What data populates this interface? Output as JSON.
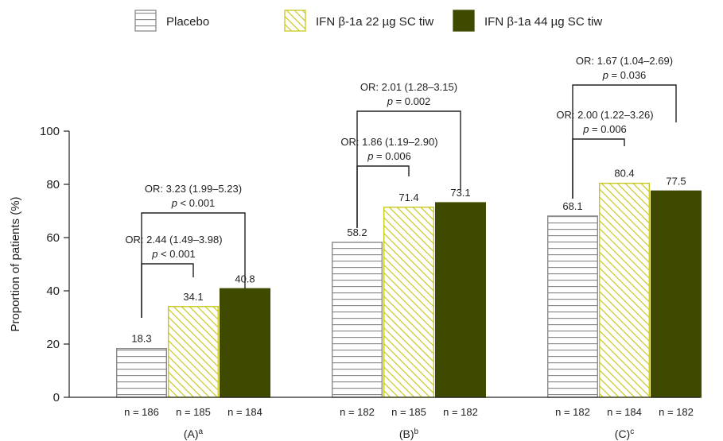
{
  "chart_data": {
    "type": "bar",
    "ylabel": "Proportion of patients (%)",
    "ylim": [
      0,
      100
    ],
    "yticks": [
      0,
      20,
      40,
      60,
      80,
      100
    ],
    "legend_position": "top",
    "series": [
      {
        "name": "Placebo",
        "pattern": "horizontal-lines",
        "color": "#8a8a8a"
      },
      {
        "name": "IFN β-1a 22 µg SC tiw",
        "pattern": "diagonal-hatch",
        "color": "#c8c81e"
      },
      {
        "name": "IFN β-1a 44 µg SC tiw",
        "pattern": "solid",
        "color": "#3f4a00"
      }
    ],
    "groups": [
      {
        "label": "(A)",
        "sup": "a",
        "values": [
          18.3,
          34.1,
          40.8
        ],
        "value_labels": [
          "18.3",
          "34.1",
          "40.8"
        ],
        "n_labels": [
          "n = 186",
          "n = 185",
          "n = 184"
        ],
        "comparisons": [
          {
            "from": 0,
            "to": 1,
            "or": "OR: 2.44 (1.49–3.98)",
            "p_op": "<",
            "p_val": "0.001"
          },
          {
            "from": 0,
            "to": 2,
            "or": "OR: 3.23 (1.99–5.23)",
            "p_op": "<",
            "p_val": "0.001"
          }
        ]
      },
      {
        "label": "(B)",
        "sup": "b",
        "values": [
          58.2,
          71.4,
          73.1
        ],
        "value_labels": [
          "58.2",
          "71.4",
          "73.1"
        ],
        "n_labels": [
          "n = 182",
          "n = 185",
          "n = 182"
        ],
        "comparisons": [
          {
            "from": 0,
            "to": 1,
            "or": "OR: 1.86 (1.19–2.90)",
            "p_op": "=",
            "p_val": "0.006"
          },
          {
            "from": 0,
            "to": 2,
            "or": "OR: 2.01 (1.28–3.15)",
            "p_op": "=",
            "p_val": "0.002"
          }
        ]
      },
      {
        "label": "(C)",
        "sup": "c",
        "values": [
          68.1,
          80.4,
          77.5
        ],
        "value_labels": [
          "68.1",
          "80.4",
          "77.5"
        ],
        "n_labels": [
          "n = 182",
          "n = 184",
          "n = 182"
        ],
        "comparisons": [
          {
            "from": 0,
            "to": 1,
            "or": "OR: 2.00 (1.22–3.26)",
            "p_op": "=",
            "p_val": "0.006"
          },
          {
            "from": 0,
            "to": 2,
            "or": "OR: 1.67 (1.04–2.69)",
            "p_op": "=",
            "p_val": "0.036"
          }
        ]
      }
    ]
  }
}
